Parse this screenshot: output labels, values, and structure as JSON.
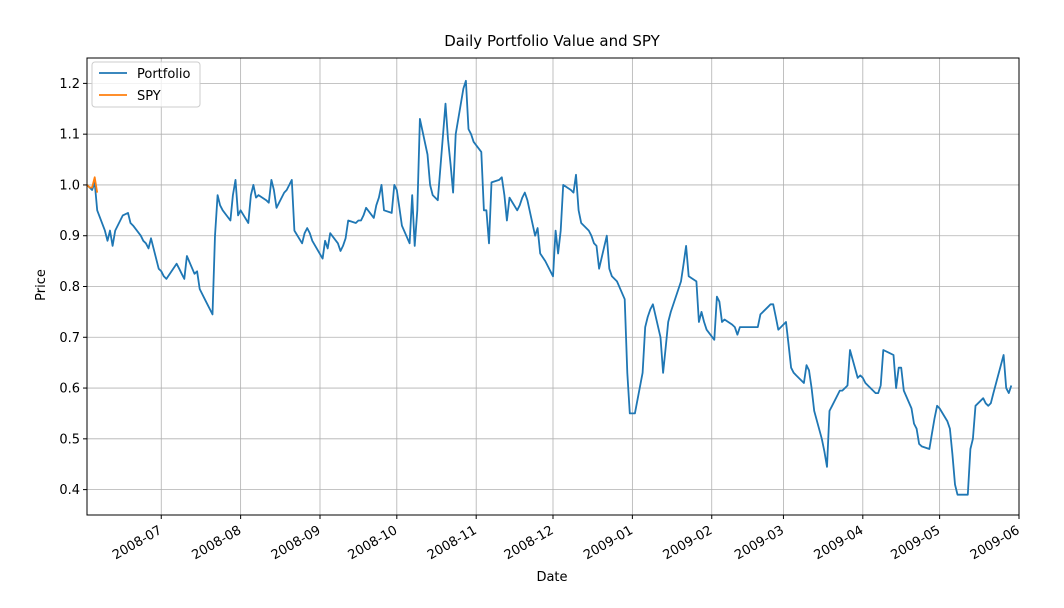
{
  "chart_data": {
    "type": "line",
    "title": "Daily Portfolio Value and SPY",
    "xlabel": "Date",
    "ylabel": "Price",
    "xlim": [
      "2008-06-02",
      "2009-06-01"
    ],
    "ylim": [
      0.35,
      1.25
    ],
    "grid": true,
    "legend_position": "upper-left",
    "x_ticks": [
      "2008-07-01",
      "2008-08-01",
      "2008-09-01",
      "2008-10-01",
      "2008-11-01",
      "2008-12-01",
      "2009-01-01",
      "2009-02-01",
      "2009-03-01",
      "2009-04-01",
      "2009-05-01",
      "2009-06-01"
    ],
    "x_tick_labels": [
      "2008-07",
      "2008-08",
      "2008-09",
      "2008-10",
      "2008-11",
      "2008-12",
      "2009-01",
      "2009-02",
      "2009-03",
      "2009-04",
      "2009-05",
      "2009-06"
    ],
    "y_ticks": [
      0.4,
      0.5,
      0.6,
      0.7,
      0.8,
      0.9,
      1.0,
      1.1,
      1.2
    ],
    "y_tick_labels": [
      "0.4",
      "0.5",
      "0.6",
      "0.7",
      "0.8",
      "0.9",
      "1.0",
      "1.1",
      "1.2"
    ],
    "series": [
      {
        "name": "Portfolio",
        "color": "#1f77b4",
        "points": [
          [
            "2008-06-02",
            1.0
          ],
          [
            "2008-06-04",
            0.99
          ],
          [
            "2008-06-05",
            1.005
          ],
          [
            "2008-06-06",
            0.95
          ],
          [
            "2008-06-09",
            0.91
          ],
          [
            "2008-06-10",
            0.89
          ],
          [
            "2008-06-11",
            0.91
          ],
          [
            "2008-06-12",
            0.88
          ],
          [
            "2008-06-13",
            0.91
          ],
          [
            "2008-06-16",
            0.94
          ],
          [
            "2008-06-18",
            0.945
          ],
          [
            "2008-06-19",
            0.925
          ],
          [
            "2008-06-20",
            0.92
          ],
          [
            "2008-06-23",
            0.9
          ],
          [
            "2008-06-24",
            0.89
          ],
          [
            "2008-06-25",
            0.885
          ],
          [
            "2008-06-26",
            0.875
          ],
          [
            "2008-06-27",
            0.895
          ],
          [
            "2008-06-30",
            0.835
          ],
          [
            "2008-07-01",
            0.83
          ],
          [
            "2008-07-02",
            0.82
          ],
          [
            "2008-07-03",
            0.815
          ],
          [
            "2008-07-07",
            0.845
          ],
          [
            "2008-07-08",
            0.835
          ],
          [
            "2008-07-09",
            0.825
          ],
          [
            "2008-07-10",
            0.815
          ],
          [
            "2008-07-11",
            0.86
          ],
          [
            "2008-07-14",
            0.825
          ],
          [
            "2008-07-15",
            0.83
          ],
          [
            "2008-07-16",
            0.795
          ],
          [
            "2008-07-18",
            0.775
          ],
          [
            "2008-07-21",
            0.745
          ],
          [
            "2008-07-22",
            0.9
          ],
          [
            "2008-07-23",
            0.98
          ],
          [
            "2008-07-24",
            0.96
          ],
          [
            "2008-07-25",
            0.95
          ],
          [
            "2008-07-28",
            0.93
          ],
          [
            "2008-07-29",
            0.98
          ],
          [
            "2008-07-30",
            1.01
          ],
          [
            "2008-07-31",
            0.94
          ],
          [
            "2008-08-01",
            0.95
          ],
          [
            "2008-08-04",
            0.925
          ],
          [
            "2008-08-05",
            0.98
          ],
          [
            "2008-08-06",
            1.0
          ],
          [
            "2008-08-07",
            0.975
          ],
          [
            "2008-08-08",
            0.98
          ],
          [
            "2008-08-11",
            0.97
          ],
          [
            "2008-08-12",
            0.965
          ],
          [
            "2008-08-13",
            1.01
          ],
          [
            "2008-08-14",
            0.99
          ],
          [
            "2008-08-15",
            0.955
          ],
          [
            "2008-08-18",
            0.985
          ],
          [
            "2008-08-19",
            0.99
          ],
          [
            "2008-08-20",
            1.0
          ],
          [
            "2008-08-21",
            1.01
          ],
          [
            "2008-08-22",
            0.91
          ],
          [
            "2008-08-25",
            0.885
          ],
          [
            "2008-08-26",
            0.905
          ],
          [
            "2008-08-27",
            0.915
          ],
          [
            "2008-08-28",
            0.905
          ],
          [
            "2008-08-29",
            0.89
          ],
          [
            "2008-09-02",
            0.855
          ],
          [
            "2008-09-03",
            0.89
          ],
          [
            "2008-09-04",
            0.875
          ],
          [
            "2008-09-05",
            0.905
          ],
          [
            "2008-09-08",
            0.885
          ],
          [
            "2008-09-09",
            0.87
          ],
          [
            "2008-09-10",
            0.88
          ],
          [
            "2008-09-11",
            0.895
          ],
          [
            "2008-09-12",
            0.93
          ],
          [
            "2008-09-15",
            0.925
          ],
          [
            "2008-09-16",
            0.93
          ],
          [
            "2008-09-17",
            0.93
          ],
          [
            "2008-09-18",
            0.94
          ],
          [
            "2008-09-19",
            0.955
          ],
          [
            "2008-09-22",
            0.935
          ],
          [
            "2008-09-23",
            0.96
          ],
          [
            "2008-09-24",
            0.975
          ],
          [
            "2008-09-25",
            1.0
          ],
          [
            "2008-09-26",
            0.95
          ],
          [
            "2008-09-29",
            0.945
          ],
          [
            "2008-09-30",
            1.0
          ],
          [
            "2008-10-01",
            0.99
          ],
          [
            "2008-10-02",
            0.955
          ],
          [
            "2008-10-03",
            0.92
          ],
          [
            "2008-10-06",
            0.885
          ],
          [
            "2008-10-07",
            0.98
          ],
          [
            "2008-10-08",
            0.88
          ],
          [
            "2008-10-09",
            0.95
          ],
          [
            "2008-10-10",
            1.13
          ],
          [
            "2008-10-13",
            1.06
          ],
          [
            "2008-10-14",
            1.0
          ],
          [
            "2008-10-15",
            0.98
          ],
          [
            "2008-10-16",
            0.975
          ],
          [
            "2008-10-17",
            0.97
          ],
          [
            "2008-10-20",
            1.16
          ],
          [
            "2008-10-21",
            1.09
          ],
          [
            "2008-10-22",
            1.04
          ],
          [
            "2008-10-23",
            0.985
          ],
          [
            "2008-10-24",
            1.1
          ],
          [
            "2008-10-27",
            1.19
          ],
          [
            "2008-10-28",
            1.205
          ],
          [
            "2008-10-29",
            1.11
          ],
          [
            "2008-10-30",
            1.1
          ],
          [
            "2008-10-31",
            1.085
          ],
          [
            "2008-11-03",
            1.065
          ],
          [
            "2008-11-04",
            0.95
          ],
          [
            "2008-11-05",
            0.95
          ],
          [
            "2008-11-06",
            0.885
          ],
          [
            "2008-11-07",
            1.005
          ],
          [
            "2008-11-10",
            1.01
          ],
          [
            "2008-11-11",
            1.015
          ],
          [
            "2008-11-12",
            0.98
          ],
          [
            "2008-11-13",
            0.93
          ],
          [
            "2008-11-14",
            0.975
          ],
          [
            "2008-11-17",
            0.95
          ],
          [
            "2008-11-18",
            0.96
          ],
          [
            "2008-11-19",
            0.975
          ],
          [
            "2008-11-20",
            0.985
          ],
          [
            "2008-11-21",
            0.97
          ],
          [
            "2008-11-24",
            0.9
          ],
          [
            "2008-11-25",
            0.915
          ],
          [
            "2008-11-26",
            0.865
          ],
          [
            "2008-11-28",
            0.85
          ],
          [
            "2008-12-01",
            0.82
          ],
          [
            "2008-12-02",
            0.91
          ],
          [
            "2008-12-03",
            0.865
          ],
          [
            "2008-12-04",
            0.91
          ],
          [
            "2008-12-05",
            1.0
          ],
          [
            "2008-12-08",
            0.99
          ],
          [
            "2008-12-09",
            0.985
          ],
          [
            "2008-12-10",
            1.02
          ],
          [
            "2008-12-11",
            0.95
          ],
          [
            "2008-12-12",
            0.925
          ],
          [
            "2008-12-15",
            0.91
          ],
          [
            "2008-12-16",
            0.9
          ],
          [
            "2008-12-17",
            0.885
          ],
          [
            "2008-12-18",
            0.88
          ],
          [
            "2008-12-19",
            0.835
          ],
          [
            "2008-12-22",
            0.9
          ],
          [
            "2008-12-23",
            0.835
          ],
          [
            "2008-12-24",
            0.82
          ],
          [
            "2008-12-26",
            0.81
          ],
          [
            "2008-12-29",
            0.775
          ],
          [
            "2008-12-30",
            0.63
          ],
          [
            "2008-12-31",
            0.55
          ],
          [
            "2009-01-02",
            0.55
          ],
          [
            "2009-01-05",
            0.63
          ],
          [
            "2009-01-06",
            0.72
          ],
          [
            "2009-01-07",
            0.74
          ],
          [
            "2009-01-08",
            0.755
          ],
          [
            "2009-01-09",
            0.765
          ],
          [
            "2009-01-12",
            0.7
          ],
          [
            "2009-01-13",
            0.63
          ],
          [
            "2009-01-14",
            0.68
          ],
          [
            "2009-01-15",
            0.73
          ],
          [
            "2009-01-16",
            0.75
          ],
          [
            "2009-01-20",
            0.81
          ],
          [
            "2009-01-21",
            0.845
          ],
          [
            "2009-01-22",
            0.88
          ],
          [
            "2009-01-23",
            0.82
          ],
          [
            "2009-01-26",
            0.81
          ],
          [
            "2009-01-27",
            0.73
          ],
          [
            "2009-01-28",
            0.75
          ],
          [
            "2009-01-29",
            0.73
          ],
          [
            "2009-01-30",
            0.715
          ],
          [
            "2009-02-02",
            0.695
          ],
          [
            "2009-02-03",
            0.78
          ],
          [
            "2009-02-04",
            0.77
          ],
          [
            "2009-02-05",
            0.73
          ],
          [
            "2009-02-06",
            0.735
          ],
          [
            "2009-02-09",
            0.725
          ],
          [
            "2009-02-10",
            0.72
          ],
          [
            "2009-02-11",
            0.705
          ],
          [
            "2009-02-12",
            0.72
          ],
          [
            "2009-02-13",
            0.72
          ],
          [
            "2009-02-17",
            0.72
          ],
          [
            "2009-02-18",
            0.72
          ],
          [
            "2009-02-19",
            0.72
          ],
          [
            "2009-02-20",
            0.745
          ],
          [
            "2009-02-23",
            0.76
          ],
          [
            "2009-02-24",
            0.765
          ],
          [
            "2009-02-25",
            0.765
          ],
          [
            "2009-02-26",
            0.74
          ],
          [
            "2009-02-27",
            0.715
          ],
          [
            "2009-03-02",
            0.73
          ],
          [
            "2009-03-03",
            0.685
          ],
          [
            "2009-03-04",
            0.64
          ],
          [
            "2009-03-05",
            0.63
          ],
          [
            "2009-03-06",
            0.625
          ],
          [
            "2009-03-09",
            0.61
          ],
          [
            "2009-03-10",
            0.645
          ],
          [
            "2009-03-11",
            0.635
          ],
          [
            "2009-03-12",
            0.6
          ],
          [
            "2009-03-13",
            0.555
          ],
          [
            "2009-03-16",
            0.5
          ],
          [
            "2009-03-17",
            0.475
          ],
          [
            "2009-03-18",
            0.445
          ],
          [
            "2009-03-19",
            0.555
          ],
          [
            "2009-03-20",
            0.565
          ],
          [
            "2009-03-23",
            0.595
          ],
          [
            "2009-03-24",
            0.595
          ],
          [
            "2009-03-25",
            0.6
          ],
          [
            "2009-03-26",
            0.605
          ],
          [
            "2009-03-27",
            0.675
          ],
          [
            "2009-03-30",
            0.62
          ],
          [
            "2009-03-31",
            0.625
          ],
          [
            "2009-04-01",
            0.62
          ],
          [
            "2009-04-02",
            0.61
          ],
          [
            "2009-04-03",
            0.605
          ],
          [
            "2009-04-06",
            0.59
          ],
          [
            "2009-04-07",
            0.59
          ],
          [
            "2009-04-08",
            0.605
          ],
          [
            "2009-04-09",
            0.675
          ],
          [
            "2009-04-13",
            0.665
          ],
          [
            "2009-04-14",
            0.6
          ],
          [
            "2009-04-15",
            0.64
          ],
          [
            "2009-04-16",
            0.64
          ],
          [
            "2009-04-17",
            0.595
          ],
          [
            "2009-04-20",
            0.56
          ],
          [
            "2009-04-21",
            0.53
          ],
          [
            "2009-04-22",
            0.52
          ],
          [
            "2009-04-23",
            0.49
          ],
          [
            "2009-04-24",
            0.485
          ],
          [
            "2009-04-27",
            0.48
          ],
          [
            "2009-04-28",
            0.51
          ],
          [
            "2009-04-29",
            0.54
          ],
          [
            "2009-04-30",
            0.565
          ],
          [
            "2009-05-01",
            0.56
          ],
          [
            "2009-05-04",
            0.535
          ],
          [
            "2009-05-05",
            0.52
          ],
          [
            "2009-05-06",
            0.47
          ],
          [
            "2009-05-07",
            0.41
          ],
          [
            "2009-05-08",
            0.39
          ],
          [
            "2009-05-11",
            0.39
          ],
          [
            "2009-05-12",
            0.39
          ],
          [
            "2009-05-13",
            0.48
          ],
          [
            "2009-05-14",
            0.5
          ],
          [
            "2009-05-15",
            0.565
          ],
          [
            "2009-05-18",
            0.58
          ],
          [
            "2009-05-19",
            0.57
          ],
          [
            "2009-05-20",
            0.565
          ],
          [
            "2009-05-21",
            0.57
          ],
          [
            "2009-05-22",
            0.59
          ],
          [
            "2009-05-26",
            0.665
          ],
          [
            "2009-05-27",
            0.6
          ],
          [
            "2009-05-28",
            0.59
          ],
          [
            "2009-05-29",
            0.605
          ]
        ]
      },
      {
        "name": "SPY",
        "color": "#ff7f0e",
        "points": [
          [
            "2008-06-02",
            1.0
          ],
          [
            "2008-06-03",
            0.995
          ],
          [
            "2008-06-04",
            0.995
          ],
          [
            "2008-06-05",
            1.015
          ],
          [
            "2008-06-06",
            0.985
          ]
        ]
      }
    ]
  }
}
